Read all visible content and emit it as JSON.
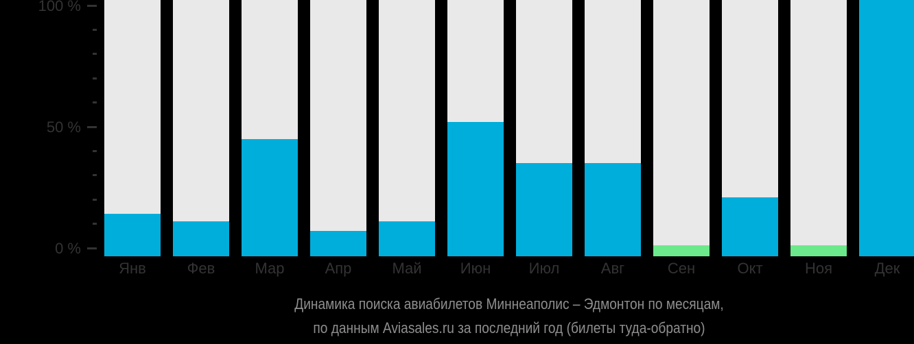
{
  "chart_data": {
    "type": "bar",
    "title": "Динамика поиска авиабилетов Миннеаполис – Эдмонтон по месяцам,",
    "subtitle": "по данным Aviasales.ru за последний год (билеты туда-обратно)",
    "xlabel": "",
    "ylabel": "",
    "unit": "%",
    "ylim": [
      0,
      100
    ],
    "grid": "off",
    "legend": "none",
    "categories": [
      "Янв",
      "Фев",
      "Мар",
      "Апр",
      "Май",
      "Июн",
      "Июл",
      "Авг",
      "Сен",
      "Окт",
      "Ноя",
      "Дек"
    ],
    "values": [
      14,
      11,
      45,
      7,
      11,
      52,
      35,
      35,
      1,
      21,
      1,
      100
    ],
    "value_colors": [
      "blue",
      "blue",
      "blue",
      "blue",
      "blue",
      "blue",
      "blue",
      "blue",
      "green",
      "blue",
      "green",
      "blue"
    ],
    "y_ticks_major": [
      {
        "value": 0,
        "label": "0 %"
      },
      {
        "value": 50,
        "label": "50 %"
      },
      {
        "value": 100,
        "label": "100 %"
      }
    ],
    "y_tick_minor_step": 10
  },
  "colors": {
    "background": "#000000",
    "bar_blue": "#00AEDB",
    "bar_green": "#6CE98A",
    "bar_track": "#E9E9E9",
    "axis_text": "#333333",
    "tick": "#333333",
    "caption_text": "#8E8E8E"
  }
}
